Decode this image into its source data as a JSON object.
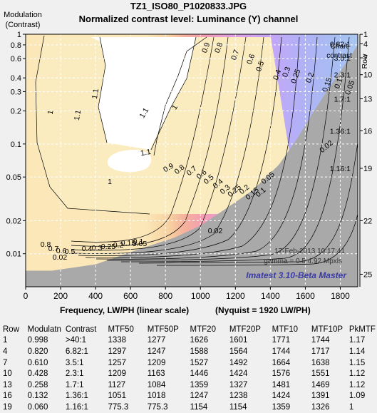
{
  "title": "TZ1_ISO80_P1020833.JPG",
  "subtitle": "Normalized contrast level:  Luminance (Y) channel",
  "ylabel_lines": [
    "Modulation",
    "(Contrast)"
  ],
  "xlabel": "Frequency, LW/PH (linear scale)",
  "nyquist_label": "(Nyquist = 1920 LW/PH)",
  "timestamp": "17-Feb-2013 10:17:41",
  "gamma_label": "gamma = 0.5   4.92 Mpxls",
  "watermark": "Imatest 3.10-Beta Master",
  "colors": {
    "watermark": "#3a3aa8",
    "below_floor": "#a9a9a9",
    "grid": "#ffffff"
  },
  "chart_data": {
    "type": "contour",
    "x_range": [
      0,
      1900
    ],
    "y_scale": "log",
    "y_range": [
      0.005,
      1
    ],
    "x_ticks": [
      "0",
      "200",
      "400",
      "600",
      "800",
      "1000",
      "1200",
      "1400",
      "1600",
      "1800"
    ],
    "y_ticks": [
      "1",
      "0.8",
      "0.6",
      "0.4",
      "0.3",
      "0.2",
      "0.1",
      "0.05",
      "0.02",
      "0.01"
    ],
    "contour_levels": [
      "1.1",
      "1",
      "0.9",
      "0.8",
      "0.7",
      "0.6",
      "0.5",
      "0.4",
      "0.3",
      "0.25",
      "0.2",
      "0.15",
      "0.1",
      "0.05",
      "0.02"
    ],
    "noise_floor": [
      [
        0,
        0.005
      ],
      [
        0,
        0.007
      ],
      [
        150,
        0.007
      ],
      [
        400,
        0.008
      ],
      [
        650,
        0.011
      ],
      [
        850,
        0.014
      ],
      [
        1000,
        0.018
      ],
      [
        1150,
        0.026
      ],
      [
        1300,
        0.038
      ],
      [
        1450,
        0.065
      ],
      [
        1550,
        0.11
      ],
      [
        1650,
        0.2
      ],
      [
        1750,
        0.35
      ],
      [
        1850,
        0.6
      ],
      [
        1900,
        0.8
      ],
      [
        1900,
        0.005
      ]
    ],
    "right_axis_title": "Row",
    "chart_contrast_title": [
      "Chart",
      "contrast"
    ],
    "right_rows": [
      {
        "row": "1",
        "contrast": "",
        "y": 0.998
      },
      {
        "row": "4",
        "contrast": "6.82:1",
        "y": 0.82
      },
      {
        "row": "7",
        "contrast": "3.5:1",
        "y": 0.61
      },
      {
        "row": "10",
        "contrast": "2.3:1",
        "y": 0.428
      },
      {
        "row": "13",
        "contrast": "1.7:1",
        "y": 0.258
      },
      {
        "row": "16",
        "contrast": "1.36:1",
        "y": 0.132
      },
      {
        "row": "19",
        "contrast": "1.16:1",
        "y": 0.06
      },
      {
        "row": "22",
        "contrast": "",
        "y": 0.02
      },
      {
        "row": "25",
        "contrast": "",
        "y": 0.0065
      }
    ]
  },
  "table": {
    "headers": [
      "Row",
      "Modulatn",
      "Contrast",
      "MTF50",
      "MTF50P",
      "MTF20",
      "MTF20P",
      "MTF10",
      "MTF10P",
      "PkMTF"
    ],
    "rows": [
      [
        "1",
        "0.998",
        ">40:1",
        "1338",
        "1277",
        "1626",
        "1601",
        "1771",
        "1744",
        "1.17"
      ],
      [
        "4",
        "0.820",
        "6.82:1",
        "1297",
        "1247",
        "1588",
        "1564",
        "1744",
        "1717",
        "1.14"
      ],
      [
        "7",
        "0.610",
        "3.5:1",
        "1257",
        "1209",
        "1527",
        "1492",
        "1664",
        "1638",
        "1.15"
      ],
      [
        "10",
        "0.428",
        "2.3:1",
        "1209",
        "1163",
        "1446",
        "1424",
        "1576",
        "1551",
        "1.12"
      ],
      [
        "13",
        "0.258",
        "1.7:1",
        "1127",
        "1084",
        "1359",
        "1327",
        "1481",
        "1469",
        "1.12"
      ],
      [
        "16",
        "0.132",
        "1.36:1",
        "1051",
        "1018",
        "1247",
        "1238",
        "1424",
        "1391",
        "1.09"
      ],
      [
        "19",
        "0.060",
        "1.16:1",
        "775.3",
        "775.3",
        "1154",
        "1154",
        "1359",
        "1326",
        "1"
      ]
    ]
  }
}
